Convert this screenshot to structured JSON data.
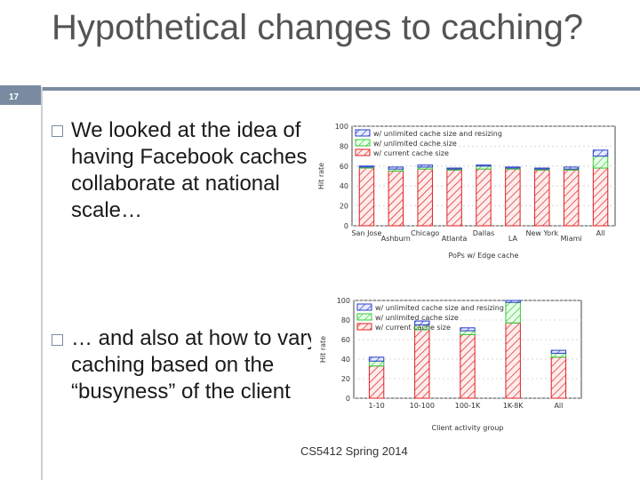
{
  "slide": {
    "number": "17",
    "title": "Hypothetical changes to caching?",
    "bullets": [
      "We looked at the idea of having Facebook caches collaborate at national scale…",
      "… and also at how to vary caching based on the “busyness” of the client"
    ],
    "footer": "CS5412 Spring 2014"
  },
  "colors": {
    "accent": "#7a8aa0",
    "series_blue": "#2b3fc8",
    "series_green": "#37c837",
    "series_red": "#e02020"
  },
  "chart_data": [
    {
      "type": "bar",
      "stacked": true,
      "categories": [
        "San Jose",
        "Ashburn",
        "Chicago",
        "Atlanta",
        "Dallas",
        "LA",
        "New York",
        "Miami",
        "All"
      ],
      "xlabel": "PoPs w/ Edge cache",
      "ylabel": "Hit rate",
      "ylim": [
        0,
        100
      ],
      "yticks": [
        0,
        20,
        40,
        60,
        80,
        100
      ],
      "legend_position": "top",
      "series": [
        {
          "name": "w/ current cache size",
          "values": [
            58,
            55,
            57,
            56,
            57,
            57,
            56,
            56,
            58
          ]
        },
        {
          "name": "w/ unlimited cache size",
          "values": [
            1,
            2,
            2,
            1,
            3,
            1,
            1,
            1,
            12
          ]
        },
        {
          "name": "w/ unlimited cache size and resizing",
          "values": [
            1,
            2,
            2,
            1,
            1,
            1,
            1,
            2,
            6
          ]
        }
      ]
    },
    {
      "type": "bar",
      "stacked": true,
      "categories": [
        "1-10",
        "10-100",
        "100-1K",
        "1K-8K",
        "All"
      ],
      "xlabel": "Client activity group",
      "ylabel": "Hit rate",
      "ylim": [
        0,
        100
      ],
      "yticks": [
        0,
        20,
        40,
        60,
        80,
        100
      ],
      "legend_position": "top",
      "series": [
        {
          "name": "w/ current cache size",
          "values": [
            33,
            70,
            65,
            77,
            42
          ]
        },
        {
          "name": "w/ unlimited cache size",
          "values": [
            5,
            5,
            4,
            21,
            4
          ]
        },
        {
          "name": "w/ unlimited cache size and resizing",
          "values": [
            4,
            4,
            3,
            2,
            3
          ]
        }
      ]
    }
  ]
}
